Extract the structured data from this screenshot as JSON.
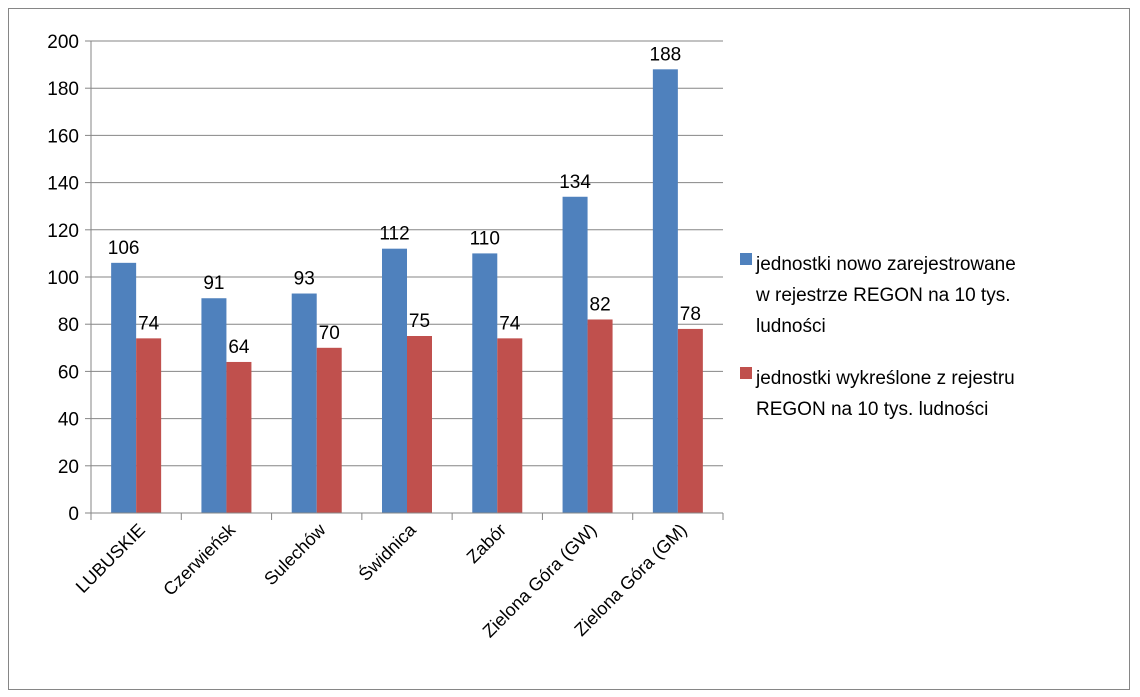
{
  "chart_data": {
    "type": "bar",
    "categories": [
      "LUBUSKIE",
      "Czerwieńsk",
      "Sulechów",
      "Świdnica",
      "Zabór",
      "Zielona Góra (GW)",
      "Zielona Góra (GM)"
    ],
    "series": [
      {
        "name": "jednostki nowo zarejestrowane w rejestrze REGON na 10 tys. ludności",
        "color": "#4F81BD",
        "values": [
          106,
          91,
          93,
          112,
          110,
          134,
          188
        ]
      },
      {
        "name": "jednostki wykreślone z rejestru REGON na 10 tys. ludności",
        "color": "#C0504D",
        "values": [
          74,
          64,
          70,
          75,
          74,
          82,
          78
        ]
      }
    ],
    "title": "",
    "xlabel": "",
    "ylabel": "",
    "ylim": [
      0,
      200
    ],
    "yticks": [
      "0",
      "20",
      "40",
      "60",
      "80",
      "100",
      "120",
      "140",
      "160",
      "180",
      "200"
    ],
    "grid": true,
    "data_labels": true,
    "legend": {
      "position": "right",
      "entries": [
        [
          "jednostki nowo zarejestrowane",
          "w rejestrze REGON na 10 tys.",
          "ludności"
        ],
        [
          "jednostki wykreślone z rejestru",
          "REGON na 10 tys. ludności"
        ]
      ]
    }
  }
}
